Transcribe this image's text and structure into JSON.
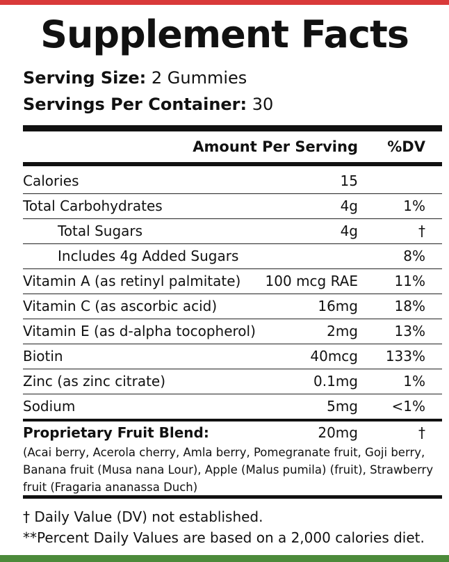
{
  "title": "Supplement Facts",
  "serving_size": {
    "label": "Serving Size:",
    "value": "2 Gummies"
  },
  "servings_per_container": {
    "label": "Servings Per Container:",
    "value": "30"
  },
  "table": {
    "header": {
      "amount": "Amount Per Serving",
      "dv": "%DV"
    },
    "rows": [
      {
        "name": "Calories",
        "amount": "15"
      },
      {
        "name": "Total Carbohydrates",
        "amount": "4g",
        "dv": "1%",
        "sub_rows": [
          {
            "name": "Total Sugars",
            "amount": "4g",
            "dv": "†"
          },
          {
            "name": "Includes 4g Added Sugars",
            "dv": "8%"
          }
        ]
      },
      {
        "name": "Vitamin A (as retinyl palmitate)",
        "amount": "100 mcg RAE",
        "dv": "11%"
      },
      {
        "name": "Vitamin C (as ascorbic acid)",
        "amount": "16mg",
        "dv": "18%"
      },
      {
        "name": "Vitamin E (as d-alpha tocopherol)",
        "amount": "2mg",
        "dv": "13%"
      },
      {
        "name": "Biotin",
        "amount": "40mcg",
        "dv": "133%"
      },
      {
        "name": "Zinc (as zinc citrate)",
        "amount": "0.1mg",
        "dv": "1%"
      },
      {
        "name": "Sodium",
        "amount": "5mg",
        "dv": "<1%"
      }
    ],
    "blend": {
      "name": "Proprietary Fruit Blend:",
      "amount": "20mg",
      "dv": "†",
      "ingredients": "(Acai berry, Acerola cherry, Amla berry, Pomegranate fruit, Goji berry, Banana fruit (Musa nana Lour), Apple (Malus pumila) (fruit), Strawberry fruit (Fragaria ananassa Duch)"
    }
  },
  "footnotes": [
    "† Daily Value (DV) not established.",
    "**Percent Daily Values are based on a 2,000 calories diet."
  ]
}
